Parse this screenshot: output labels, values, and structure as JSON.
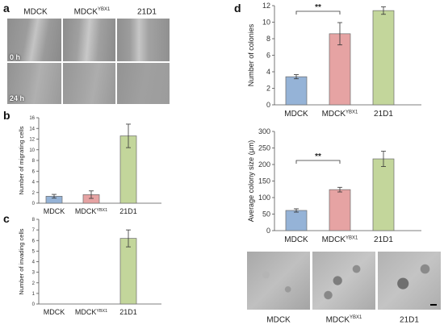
{
  "panels": {
    "a": {
      "letter": "a",
      "columns": [
        "MDCK",
        "MDCK",
        "21D1"
      ],
      "column_sup": [
        "",
        "YBX1",
        ""
      ],
      "rows": [
        "0 h",
        "24 h"
      ]
    },
    "b": {
      "letter": "b"
    },
    "c": {
      "letter": "c"
    },
    "d": {
      "letter": "d",
      "micrographs": {
        "labels": [
          "MDCK",
          "MDCK",
          "21D1"
        ],
        "label_sup": [
          "",
          "YBX1",
          ""
        ]
      }
    }
  },
  "chart_data": [
    {
      "id": "b",
      "type": "bar",
      "ylabel": "Number of migrating cells",
      "categories": [
        "MDCK",
        "MDCK",
        "21D1"
      ],
      "category_sup": [
        "",
        "YBX1",
        ""
      ],
      "values": [
        1.3,
        1.6,
        12.6
      ],
      "errors": [
        0.35,
        0.7,
        2.2
      ],
      "ylim": [
        0,
        16
      ],
      "yticks": [
        "0",
        "2",
        "4",
        "6",
        "8",
        "10",
        "12",
        "14",
        "16"
      ],
      "colors": [
        "#95b3d7",
        "#e6a3a3",
        "#c3d69b"
      ],
      "grid": false
    },
    {
      "id": "c",
      "type": "bar",
      "ylabel": "Number of invading cells",
      "categories": [
        "MDCK",
        "MDCK",
        "21D1"
      ],
      "category_sup": [
        "",
        "YBX1",
        ""
      ],
      "values": [
        0,
        0,
        6.2
      ],
      "errors": [
        0,
        0,
        0.8
      ],
      "ylim": [
        0,
        8
      ],
      "yticks": [
        "0",
        "1",
        "2",
        "3",
        "4",
        "5",
        "6",
        "7",
        "8"
      ],
      "colors": [
        "#95b3d7",
        "#e6a3a3",
        "#c3d69b"
      ],
      "grid": false
    },
    {
      "id": "d1",
      "type": "bar",
      "ylabel": "Number of colonies",
      "categories": [
        "MDCK",
        "MDCK",
        "21D1"
      ],
      "category_sup": [
        "",
        "YBX1",
        ""
      ],
      "values": [
        3.4,
        8.6,
        11.4
      ],
      "errors": [
        0.25,
        1.35,
        0.45
      ],
      "ylim": [
        0,
        12
      ],
      "yticks": [
        "0",
        "2",
        "4",
        "6",
        "8",
        "10",
        "12"
      ],
      "colors": [
        "#95b3d7",
        "#e6a3a3",
        "#c3d69b"
      ],
      "significance": {
        "from": 0,
        "to": 1,
        "label": "**"
      },
      "grid": false
    },
    {
      "id": "d2",
      "type": "bar",
      "ylabel": "Average colony size (μm)",
      "categories": [
        "MDCK",
        "MDCK",
        "21D1"
      ],
      "category_sup": [
        "",
        "YBX1",
        ""
      ],
      "values": [
        61,
        124,
        217
      ],
      "errors": [
        5,
        7,
        23
      ],
      "ylim": [
        0,
        300
      ],
      "yticks": [
        "0",
        "50",
        "100",
        "150",
        "200",
        "250",
        "300"
      ],
      "colors": [
        "#95b3d7",
        "#e6a3a3",
        "#c3d69b"
      ],
      "significance": {
        "from": 0,
        "to": 1,
        "label": "**"
      },
      "grid": false
    }
  ]
}
